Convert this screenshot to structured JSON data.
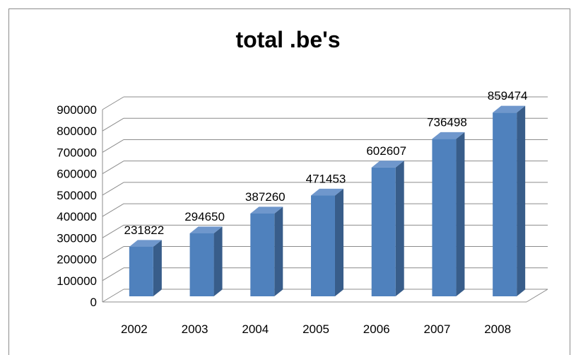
{
  "chart_data": {
    "type": "bar",
    "title": "total .be's",
    "categories": [
      "2002",
      "2003",
      "2004",
      "2005",
      "2006",
      "2007",
      "2008"
    ],
    "values": [
      231822,
      294650,
      387260,
      471453,
      602607,
      736498,
      859474
    ],
    "ylim": [
      0,
      900000
    ],
    "yticks": [
      "0",
      "100000",
      "200000",
      "300000",
      "400000",
      "500000",
      "600000",
      "700000",
      "800000",
      "900000"
    ],
    "grid": true,
    "legend": "none",
    "style": "3d-column",
    "colors": {
      "bar_front": "#4f81bd",
      "bar_side": "#385d8a",
      "bar_top": "#6f97cc",
      "grid": "#8c8c8c",
      "text": "#000000"
    }
  }
}
